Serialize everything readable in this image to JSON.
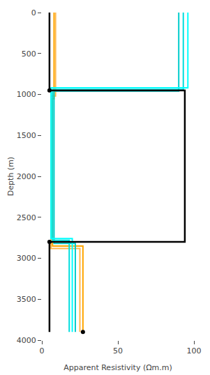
{
  "chart_data": {
    "type": "line",
    "xlabel": "Apparent Resistivity (Ωm.m)",
    "ylabel": "Depth (m)",
    "xlim": [
      0,
      100
    ],
    "ylim": [
      4000,
      0
    ],
    "xticks": [
      0,
      50,
      100
    ],
    "yticks": [
      0,
      500,
      1000,
      1500,
      2000,
      2500,
      3000,
      3500,
      4000
    ],
    "grid": false,
    "series": [
      {
        "color": "#000000",
        "x": [
          5,
          5,
          94,
          94,
          5,
          5
        ],
        "values": [
          0,
          950,
          950,
          2800,
          2800,
          3900
        ]
      },
      {
        "color": "#00FFFF",
        "x": [
          96,
          96,
          6,
          6,
          20,
          20
        ],
        "values": [
          0,
          920,
          920,
          2760,
          2760,
          3900
        ]
      },
      {
        "color": "#00DDDD",
        "x": [
          93,
          93,
          7,
          7,
          18,
          18
        ],
        "values": [
          0,
          940,
          940,
          2780,
          2780,
          3900
        ]
      },
      {
        "color": "#00CCCC",
        "x": [
          90,
          90,
          8,
          8,
          22,
          22
        ],
        "values": [
          0,
          960,
          960,
          2820,
          2820,
          3900
        ]
      },
      {
        "color": "#FFA500",
        "x": [
          8,
          8,
          7,
          7,
          27,
          27
        ],
        "values": [
          0,
          1050,
          1050,
          2850,
          2850,
          3900
        ]
      },
      {
        "color": "#FFB84D",
        "x": [
          9,
          9,
          6,
          6,
          25,
          25
        ],
        "values": [
          0,
          1020,
          1020,
          2880,
          2880,
          3900
        ]
      },
      {
        "type": "scatter",
        "marker": "circle",
        "color": "#000000",
        "x": [
          5,
          5,
          27
        ],
        "values": [
          950,
          2800,
          3900
        ]
      }
    ]
  }
}
